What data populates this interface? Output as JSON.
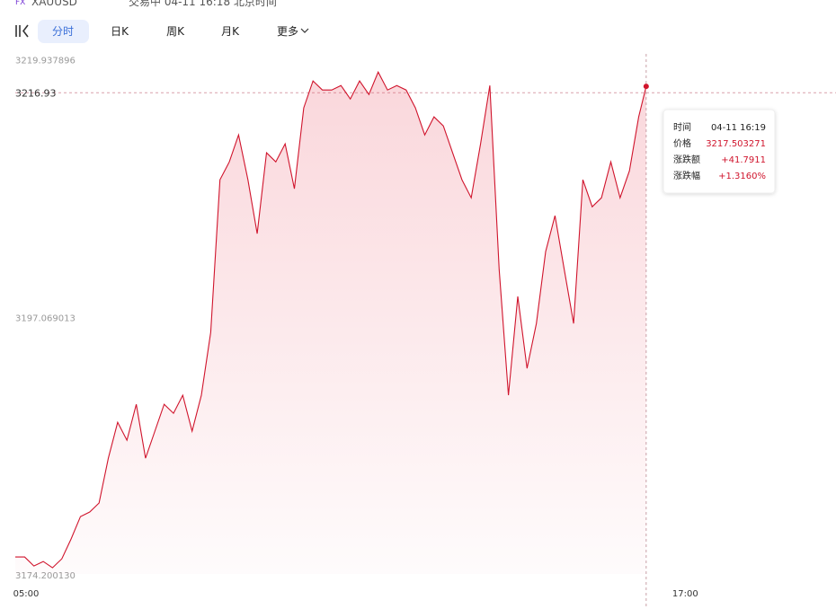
{
  "header": {
    "badge": "FX",
    "symbol": "XAUUSD",
    "status": "交易中 04-11 16:18 北京时间"
  },
  "tabs": [
    "分时",
    "日K",
    "周K",
    "月K",
    "更多"
  ],
  "chart_data": {
    "type": "line",
    "x": [
      300,
      310,
      320,
      330,
      340,
      350,
      360,
      370,
      380,
      390,
      400,
      410,
      420,
      430,
      440,
      450,
      460,
      470,
      480,
      490,
      500,
      510,
      520,
      530,
      540,
      550,
      560,
      570,
      580,
      590,
      600,
      610,
      620,
      630,
      640,
      650,
      660,
      670,
      680,
      690,
      700,
      710,
      720,
      730,
      740,
      750,
      760,
      770,
      780,
      790,
      800,
      810,
      820,
      830,
      840,
      850,
      860,
      870,
      880,
      890,
      900,
      910,
      920,
      930,
      940,
      950,
      960,
      970,
      978
    ],
    "series": [
      {
        "color": "#d0142c",
        "values": [
          3175.71,
          3175.71,
          3174.91,
          3175.31,
          3174.75,
          3175.55,
          3177.31,
          3179.3,
          3179.7,
          3180.5,
          3184.48,
          3187.67,
          3186.08,
          3189.27,
          3184.48,
          3186.88,
          3189.27,
          3188.47,
          3190.07,
          3186.88,
          3190.07,
          3195.65,
          3209.21,
          3210.8,
          3213.19,
          3209.21,
          3204.42,
          3211.6,
          3210.8,
          3212.4,
          3208.41,
          3215.59,
          3217.98,
          3217.18,
          3217.18,
          3217.58,
          3216.38,
          3217.98,
          3216.78,
          3218.77,
          3217.18,
          3217.58,
          3217.18,
          3215.59,
          3213.19,
          3214.79,
          3213.99,
          3211.6,
          3209.21,
          3207.61,
          3212.4,
          3217.58,
          3201.23,
          3190.07,
          3198.84,
          3192.46,
          3196.45,
          3202.83,
          3206.02,
          3201.23,
          3196.45,
          3209.21,
          3206.81,
          3207.61,
          3210.8,
          3207.61,
          3210.0,
          3214.79,
          3217.5
        ]
      }
    ],
    "xlim": [
      300,
      1182
    ],
    "xticks": [
      {
        "value": 300,
        "label": "05:00"
      },
      {
        "value": 1020,
        "label": "17:00"
      }
    ],
    "ylim": [
      3174.20013,
      3219.937896
    ],
    "yticks": [
      3219.937896,
      3197.069013,
      {
        "value": 3174.20013,
        "label": "3174.200130"
      }
    ],
    "price_line": 3216.93
  },
  "tooltip": {
    "rows": [
      [
        "时间",
        "04-11 16:19"
      ],
      [
        "价格",
        "3217.503271"
      ],
      [
        "涨跌额",
        "+41.7911"
      ],
      [
        "涨跌幅",
        "+1.3160%"
      ]
    ]
  }
}
